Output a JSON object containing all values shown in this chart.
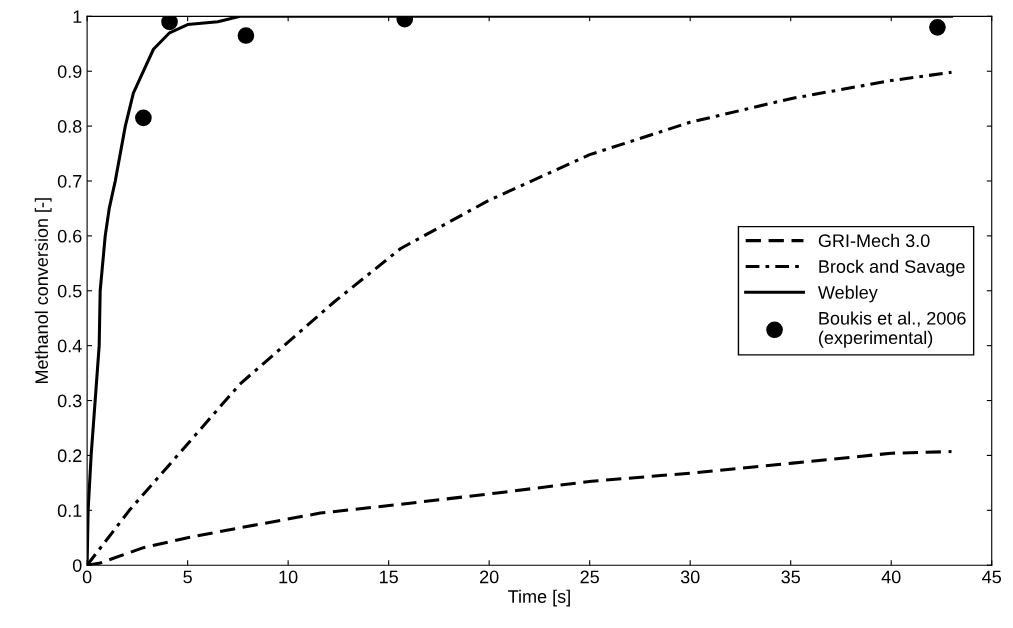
{
  "chart_data": {
    "type": "line",
    "xlabel": "Time [s]",
    "ylabel": "Methanol conversion [-]",
    "xlim": [
      0,
      45
    ],
    "xticks": [
      0,
      5,
      10,
      15,
      20,
      25,
      30,
      35,
      40,
      45
    ],
    "ylim": [
      0,
      1
    ],
    "yticks": [
      0,
      0.1,
      0.2,
      0.3,
      0.4,
      0.5,
      0.6,
      0.7,
      0.8,
      0.9,
      1
    ],
    "grid": false,
    "legend": "right",
    "series": [
      {
        "name": "GRI-Mech 3.0",
        "color": "#000000",
        "line_style": "dashed",
        "x": [
          0,
          0.65,
          2.8,
          5,
          7.6,
          11.6,
          15.6,
          20.5,
          25.1,
          30.1,
          35.1,
          40,
          43
        ],
        "values": [
          0,
          0.004,
          0.032,
          0.05,
          0.068,
          0.095,
          0.111,
          0.132,
          0.153,
          0.168,
          0.186,
          0.204,
          0.207
        ]
      },
      {
        "name": "Brock and Savage",
        "color": "#000000",
        "line_style": "dashdot",
        "x": [
          0,
          2.1,
          4.5,
          7.6,
          12.3,
          15.6,
          20,
          25,
          30,
          35,
          40,
          43
        ],
        "values": [
          0,
          0.1,
          0.2,
          0.33,
          0.48,
          0.577,
          0.665,
          0.748,
          0.807,
          0.85,
          0.883,
          0.898
        ]
      },
      {
        "name": "Webley",
        "color": "#000000",
        "line_style": "solid",
        "x": [
          0,
          0.05,
          0.2,
          0.4,
          0.6,
          0.65,
          0.9,
          1.1,
          1.4,
          1.9,
          2.3,
          2.8,
          3.3,
          4.1,
          5,
          6.5,
          7.6,
          43
        ],
        "values": [
          0,
          0.1,
          0.2,
          0.3,
          0.4,
          0.5,
          0.6,
          0.65,
          0.7,
          0.8,
          0.86,
          0.9,
          0.94,
          0.97,
          0.985,
          0.99,
          1,
          1
        ]
      },
      {
        "name": "Boukis et al., 2006\n(experimental)",
        "type": "scatter",
        "marker": "circle",
        "color": "#000000",
        "x": [
          2.8,
          4.1,
          7.9,
          15.8,
          42.3
        ],
        "values": [
          0.815,
          0.99,
          0.965,
          0.995,
          0.98
        ]
      }
    ]
  }
}
